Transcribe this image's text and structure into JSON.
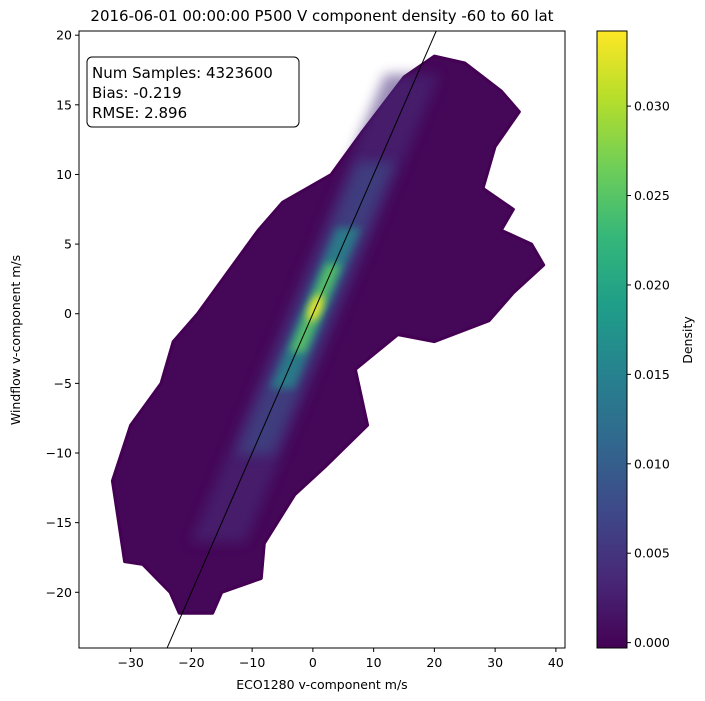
{
  "chart_data": {
    "type": "scatter",
    "title": "2016-06-01 00:00:00 P500 V component density -60 to 60 lat",
    "xlabel": "ECO1280 v-component m/s",
    "ylabel": "Windflow v-component m/s",
    "xlim": [
      -38.5,
      41.5
    ],
    "ylim": [
      -24,
      20.3
    ],
    "x_ticks": [
      -30,
      -20,
      -10,
      0,
      10,
      20,
      30,
      40
    ],
    "y_ticks": [
      -20,
      -15,
      -10,
      -5,
      0,
      5,
      10,
      15,
      20
    ],
    "x_tick_labels": [
      "−30",
      "−20",
      "−10",
      "0",
      "10",
      "20",
      "30",
      "40"
    ],
    "y_tick_labels": [
      "−20",
      "−15",
      "−10",
      "−5",
      "0",
      "5",
      "10",
      "15",
      "20"
    ],
    "reference_line": {
      "slope": 1.0,
      "intercept": 0.0,
      "color": "#000000"
    },
    "stats": [
      "Num Samples: 4323600",
      "Bias: -0.219",
      "RMSE: 2.896"
    ],
    "colorbar": {
      "label": "Density",
      "colormap": "viridis",
      "range": [
        -0.0003,
        0.0342
      ],
      "ticks": [
        0.0,
        0.005,
        0.01,
        0.015,
        0.02,
        0.025,
        0.03
      ],
      "tick_labels": [
        "0.000",
        "0.005",
        "0.010",
        "0.015",
        "0.020",
        "0.025",
        "0.030"
      ],
      "colors": [
        "#440154",
        "#482878",
        "#3e4989",
        "#31688e",
        "#26828e",
        "#1f9e89",
        "#35b779",
        "#6ece58",
        "#b5de2b",
        "#fde725"
      ]
    },
    "density_cloud": {
      "outline": [
        [
          -31,
          -17.8
        ],
        [
          -33,
          -12
        ],
        [
          -30,
          -8
        ],
        [
          -25,
          -5
        ],
        [
          -23,
          -2
        ],
        [
          -19,
          0
        ],
        [
          -14,
          3
        ],
        [
          -9,
          6
        ],
        [
          -5,
          8
        ],
        [
          3,
          10
        ],
        [
          8,
          13
        ],
        [
          15,
          17
        ],
        [
          20,
          18.5
        ],
        [
          25,
          18
        ],
        [
          31,
          16
        ],
        [
          34,
          14.5
        ],
        [
          30,
          12
        ],
        [
          28,
          9
        ],
        [
          33,
          7.5
        ],
        [
          31,
          6
        ],
        [
          36,
          5
        ],
        [
          38,
          3.5
        ],
        [
          33,
          1.5
        ],
        [
          29,
          -0.5
        ],
        [
          20,
          -2
        ],
        [
          14,
          -1.5
        ],
        [
          7,
          -4
        ],
        [
          9,
          -8
        ],
        [
          2,
          -11
        ],
        [
          -3,
          -13
        ],
        [
          -8,
          -16.5
        ],
        [
          -8.5,
          -19
        ],
        [
          -15,
          -20
        ],
        [
          -16.5,
          -21.5
        ],
        [
          -22,
          -21.5
        ],
        [
          -23.5,
          -20
        ],
        [
          -28,
          -18
        ]
      ],
      "core": {
        "center": [
          0.4,
          0.4
        ],
        "slope": 1.05
      }
    }
  }
}
